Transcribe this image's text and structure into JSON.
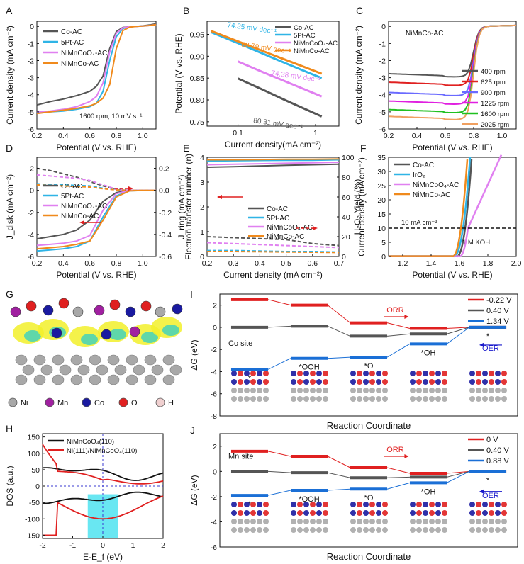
{
  "figure": {
    "colors": {
      "black": "#555555",
      "cyan": "#2fb4e6",
      "violet": "#e080f0",
      "orange": "#f08a1c",
      "red": "#e02020",
      "blue": "#1a6fd6",
      "gray": "#9a9a9a"
    },
    "atom_legend": [
      {
        "label": "Ni",
        "color": "#a8a8a8"
      },
      {
        "label": "Mn",
        "color": "#a020a0"
      },
      {
        "label": "Co",
        "color": "#1a1aa0"
      },
      {
        "label": "O",
        "color": "#e02020"
      },
      {
        "label": "H",
        "color": "#f0d0d0"
      }
    ]
  },
  "chart_data": [
    {
      "panel": "A",
      "type": "line",
      "xlabel": "Potential (V vs. RHE)",
      "ylabel": "Current density (mA cm⁻²)",
      "xlim": [
        0.2,
        1.1
      ],
      "ylim": [
        -6,
        0.3
      ],
      "xticks": [
        0.2,
        0.4,
        0.6,
        0.8,
        1.0
      ],
      "yticks": [
        0,
        -1,
        -2,
        -3,
        -4,
        -5,
        -6
      ],
      "annotation": "1600 rpm, 10 mV s⁻¹",
      "series": [
        {
          "name": "Co-AC",
          "color": "#555555",
          "x": [
            0.2,
            0.3,
            0.4,
            0.5,
            0.6,
            0.65,
            0.7,
            0.75,
            0.8,
            0.85,
            0.9,
            0.95,
            1.0,
            1.05,
            1.1
          ],
          "y": [
            -4.6,
            -4.4,
            -4.25,
            -4.05,
            -3.8,
            -3.5,
            -2.9,
            -1.3,
            -0.3,
            -0.06,
            -0.02,
            0.0,
            0.03,
            0.08,
            0.15
          ]
        },
        {
          "name": "5Pt-AC",
          "color": "#2fb4e6",
          "x": [
            0.2,
            0.3,
            0.4,
            0.5,
            0.6,
            0.65,
            0.7,
            0.75,
            0.8,
            0.85,
            0.9,
            0.95,
            1.0,
            1.05,
            1.1
          ],
          "y": [
            -5.05,
            -5.0,
            -4.95,
            -4.85,
            -4.7,
            -4.5,
            -3.8,
            -2.0,
            -0.6,
            -0.12,
            -0.03,
            0.0,
            0.02,
            0.05,
            0.1
          ]
        },
        {
          "name": "NiMnCoO₄-AC",
          "color": "#e080f0",
          "x": [
            0.2,
            0.3,
            0.4,
            0.5,
            0.6,
            0.65,
            0.7,
            0.75,
            0.8,
            0.85,
            0.9,
            0.95,
            1.0,
            1.05,
            1.1
          ],
          "y": [
            -5.0,
            -4.95,
            -4.85,
            -4.7,
            -4.4,
            -4.1,
            -3.3,
            -1.5,
            -0.4,
            -0.08,
            -0.02,
            0.0,
            0.02,
            0.05,
            0.1
          ]
        },
        {
          "name": "NiMnCo-AC",
          "color": "#f08a1c",
          "x": [
            0.2,
            0.3,
            0.4,
            0.5,
            0.6,
            0.65,
            0.7,
            0.75,
            0.8,
            0.85,
            0.9,
            0.95,
            1.0,
            1.05,
            1.1
          ],
          "y": [
            -5.1,
            -5.0,
            -4.9,
            -4.8,
            -4.65,
            -4.5,
            -4.2,
            -3.4,
            -1.3,
            -0.25,
            -0.05,
            0.0,
            0.02,
            0.05,
            0.1
          ]
        }
      ]
    },
    {
      "panel": "B",
      "type": "line",
      "xscale": "log",
      "xlabel": "Current density(mA cm⁻²)",
      "ylabel": "Potential (V vs. RHE)",
      "xlim": [
        0.04,
        2
      ],
      "ylim": [
        0.74,
        0.98
      ],
      "xticks": [
        0.1,
        1
      ],
      "yticks": [
        0.75,
        0.8,
        0.85,
        0.9,
        0.95
      ],
      "series": [
        {
          "name": "Co-AC",
          "color": "#555555",
          "x": [
            0.1,
            0.2,
            0.4,
            0.8,
            1.2
          ],
          "y": [
            0.849,
            0.825,
            0.8,
            0.776,
            0.762
          ],
          "label": "80.31 mV dec⁻¹"
        },
        {
          "name": "5Pt-AC",
          "color": "#2fb4e6",
          "x": [
            0.045,
            0.1,
            0.3,
            0.7,
            1.2
          ],
          "y": [
            0.955,
            0.93,
            0.894,
            0.867,
            0.85
          ],
          "label": "74.35 mV dec⁻¹"
        },
        {
          "name": "NiMnCoO₄-AC",
          "color": "#e080f0",
          "x": [
            0.1,
            0.2,
            0.4,
            0.8,
            1.2
          ],
          "y": [
            0.888,
            0.865,
            0.843,
            0.821,
            0.808
          ],
          "label": "74.38 mV dec⁻¹"
        },
        {
          "name": "NiMnCo-AC",
          "color": "#f08a1c",
          "x": [
            0.045,
            0.1,
            0.3,
            0.7,
            1.2
          ],
          "y": [
            0.958,
            0.934,
            0.901,
            0.876,
            0.86
          ],
          "label": "68.79 mV dec⁻¹"
        }
      ]
    },
    {
      "panel": "C",
      "type": "line",
      "xlabel": "Potential (V vs. RHE)",
      "ylabel": "Current density (mA cm⁻²)",
      "xlim": [
        0.2,
        1.1
      ],
      "ylim": [
        -6,
        0.3
      ],
      "xticks": [
        0.2,
        0.4,
        0.6,
        0.8,
        1.0
      ],
      "yticks": [
        0,
        -1,
        -2,
        -3,
        -4,
        -5,
        -6
      ],
      "annotation": "NiMnCo-AC",
      "series": [
        {
          "name": "400 rpm",
          "color": "#555555",
          "plateau": -2.9
        },
        {
          "name": "625 rpm",
          "color": "#e02020",
          "plateau": -3.4
        },
        {
          "name": "900 rpm",
          "color": "#6a6aff",
          "plateau": -4.0
        },
        {
          "name": "1225 rpm",
          "color": "#e020e0",
          "plateau": -4.5
        },
        {
          "name": "1600 rpm",
          "color": "#20c020",
          "plateau": -5.0
        },
        {
          "name": "2025 rpm",
          "color": "#f0a060",
          "plateau": -5.4
        }
      ]
    },
    {
      "panel": "D",
      "type": "line",
      "xlabel": "Potential (V vs. RHE)",
      "ylabel": "J_disk (mA cm⁻²)",
      "ylabel2": "J_ring (mA cm⁻²)",
      "xlim": [
        0.2,
        1.1
      ],
      "ylim": [
        -6,
        3
      ],
      "y2lim": [
        -0.6,
        0.3
      ],
      "xticks": [
        0.2,
        0.4,
        0.6,
        0.8,
        1.0
      ],
      "yticks": [
        2,
        0,
        -2,
        -4,
        -6
      ],
      "y2ticks": [
        0.2,
        0.0,
        -0.2,
        -0.4,
        -0.6
      ],
      "series": [
        {
          "name": "Co-AC",
          "color": "#555555",
          "ring": [
            0.2,
            0.18,
            0.15,
            0.12,
            0.08,
            0.04,
            0.01,
            0.0,
            0.0,
            0.0
          ],
          "disk": [
            -4.4,
            -4.2,
            -4.0,
            -3.6,
            -2.7,
            -1.0,
            -0.2,
            0.0,
            0.0,
            0.0
          ]
        },
        {
          "name": "5Pt-AC",
          "color": "#2fb4e6",
          "ring": [
            0.06,
            0.05,
            0.05,
            0.045,
            0.04,
            0.02,
            0.005,
            0.0,
            0.0,
            0.0
          ],
          "disk": [
            -5.5,
            -5.4,
            -5.3,
            -5.1,
            -4.6,
            -2.4,
            -0.5,
            -0.05,
            0.0,
            0.0
          ]
        },
        {
          "name": "NiMnCoO₄-AC",
          "color": "#e080f0",
          "ring": [
            0.14,
            0.13,
            0.12,
            0.11,
            0.09,
            0.05,
            0.01,
            0.0,
            0.0,
            0.0
          ],
          "disk": [
            -5.0,
            -4.9,
            -4.8,
            -4.6,
            -4.1,
            -1.8,
            -0.3,
            0.0,
            0.0,
            0.0
          ]
        },
        {
          "name": "NiMnCo-AC",
          "color": "#f08a1c",
          "ring": [
            0.05,
            0.045,
            0.04,
            0.035,
            0.03,
            0.015,
            0.004,
            0.0,
            0.0,
            0.0
          ],
          "disk": [
            -5.3,
            -5.2,
            -5.1,
            -4.9,
            -4.6,
            -2.7,
            -0.6,
            -0.05,
            0.0,
            0.0
          ]
        }
      ]
    },
    {
      "panel": "E",
      "type": "line",
      "xlabel": "Current density (mA cm⁻²)",
      "ylabel": "Electron transfer number (n)",
      "ylabel2": "H₂O₂ Yield (%)",
      "xlim": [
        0.2,
        0.7
      ],
      "ylim": [
        0,
        4
      ],
      "y2lim": [
        0,
        100
      ],
      "xticks": [
        0.2,
        0.3,
        0.4,
        0.5,
        0.6,
        0.7
      ],
      "yticks": [
        0,
        1,
        2,
        3,
        4
      ],
      "y2ticks": [
        0,
        20,
        40,
        60,
        80,
        100
      ],
      "series": [
        {
          "name": "Co-AC",
          "color": "#555555",
          "n": [
            3.6,
            3.62,
            3.65,
            3.68,
            3.7,
            3.72
          ],
          "yield": [
            20,
            19,
            18,
            17,
            13,
            11
          ]
        },
        {
          "name": "5Pt-AC",
          "color": "#2fb4e6",
          "n": [
            3.85,
            3.86,
            3.87,
            3.88,
            3.88,
            3.9
          ],
          "yield": [
            6,
            6,
            5.5,
            5,
            5,
            4.5
          ]
        },
        {
          "name": "NiMnCoO₄-AC",
          "color": "#e080f0",
          "n": [
            3.7,
            3.72,
            3.74,
            3.76,
            3.78,
            3.8
          ],
          "yield": [
            14,
            13,
            12,
            11,
            10,
            9
          ]
        },
        {
          "name": "NiMnCo-AC",
          "color": "#f08a1c",
          "n": [
            3.9,
            3.9,
            3.91,
            3.92,
            3.92,
            3.93
          ],
          "yield": [
            5,
            5,
            4.8,
            4.5,
            4.3,
            4
          ]
        }
      ]
    },
    {
      "panel": "F",
      "type": "line",
      "xlabel": "Potential (V vs. RHE)",
      "ylabel": "Current density (mA cm⁻²)",
      "xlim": [
        1.1,
        2.0
      ],
      "ylim": [
        0,
        35
      ],
      "xticks": [
        1.2,
        1.4,
        1.6,
        1.8,
        2.0
      ],
      "yticks": [
        0,
        5,
        10,
        15,
        20,
        25,
        30,
        35
      ],
      "reference_line": {
        "y": 10,
        "label": "10 mA cm⁻²"
      },
      "annotation": "1 M KOH",
      "series": [
        {
          "name": "Co-AC",
          "color": "#555555",
          "onset": 1.58,
          "x10": 1.64
        },
        {
          "name": "IrO₂",
          "color": "#2fb4e6",
          "onset": 1.56,
          "x10": 1.625
        },
        {
          "name": "NiMnCoO₄-AC",
          "color": "#e080f0",
          "onset": 1.6,
          "x10": 1.66
        },
        {
          "name": "NiMnCo-AC",
          "color": "#f08a1c",
          "onset": 1.55,
          "x10": 1.61
        }
      ]
    },
    {
      "panel": "H",
      "type": "line",
      "xlabel": "E-E_f (eV)",
      "ylabel": "DOS (a.u.)",
      "xlim": [
        -2,
        2
      ],
      "ylim": [
        -160,
        160
      ],
      "xticks": [
        -2,
        -1,
        0,
        1,
        2
      ],
      "yticks": [
        150,
        100,
        50,
        0,
        -50,
        -100,
        -150
      ],
      "shaded_region": [
        -0.5,
        0.5
      ],
      "series": [
        {
          "name": "NiMnCoO₄(110)",
          "color": "#111111"
        },
        {
          "name": "Ni(111)/NiMnCoO₄(110)",
          "color": "#e02020"
        }
      ]
    },
    {
      "panel": "I",
      "type": "line",
      "title": "Co site",
      "xlabel": "Reaction Coordinate",
      "ylabel": "ΔG (eV)",
      "ylim": [
        -8,
        3
      ],
      "yticks": [
        2,
        0,
        -2,
        -4,
        -6,
        -8
      ],
      "categories": [
        "*",
        "*OOH",
        "*O",
        "*OH",
        "*"
      ],
      "series": [
        {
          "name": "-0.22 V",
          "color": "#e02020",
          "values": [
            2.5,
            2.0,
            0.4,
            -0.1,
            0.0
          ]
        },
        {
          "name": "0.40 V",
          "color": "#555555",
          "values": [
            0.0,
            0.1,
            -0.8,
            -0.6,
            0.0
          ]
        },
        {
          "name": "1.34 V",
          "color": "#1a6fd6",
          "values": [
            -3.8,
            -2.8,
            -2.7,
            -1.5,
            0.0
          ]
        }
      ],
      "arrows": [
        {
          "label": "ORR",
          "color": "#e02020"
        },
        {
          "label": "OER",
          "color": "#1a1acc"
        }
      ]
    },
    {
      "panel": "J",
      "type": "line",
      "title": "Mn site",
      "xlabel": "Reaction Coordinate",
      "ylabel": "ΔG (eV)",
      "ylim": [
        -6,
        3
      ],
      "yticks": [
        2,
        0,
        -2,
        -4,
        -6
      ],
      "categories": [
        "*",
        "*OOH",
        "*O",
        "*OH",
        "*"
      ],
      "series": [
        {
          "name": "0 V",
          "color": "#e02020",
          "values": [
            1.6,
            1.2,
            0.3,
            -0.15,
            0.0
          ]
        },
        {
          "name": "0.40 V",
          "color": "#555555",
          "values": [
            0.0,
            -0.1,
            -0.5,
            -0.45,
            0.0
          ]
        },
        {
          "name": "0.88 V",
          "color": "#1a6fd6",
          "values": [
            -1.9,
            -1.5,
            -1.4,
            -0.9,
            0.0
          ]
        }
      ],
      "arrows": [
        {
          "label": "ORR",
          "color": "#e02020"
        },
        {
          "label": "OER",
          "color": "#1a1acc"
        }
      ]
    }
  ]
}
